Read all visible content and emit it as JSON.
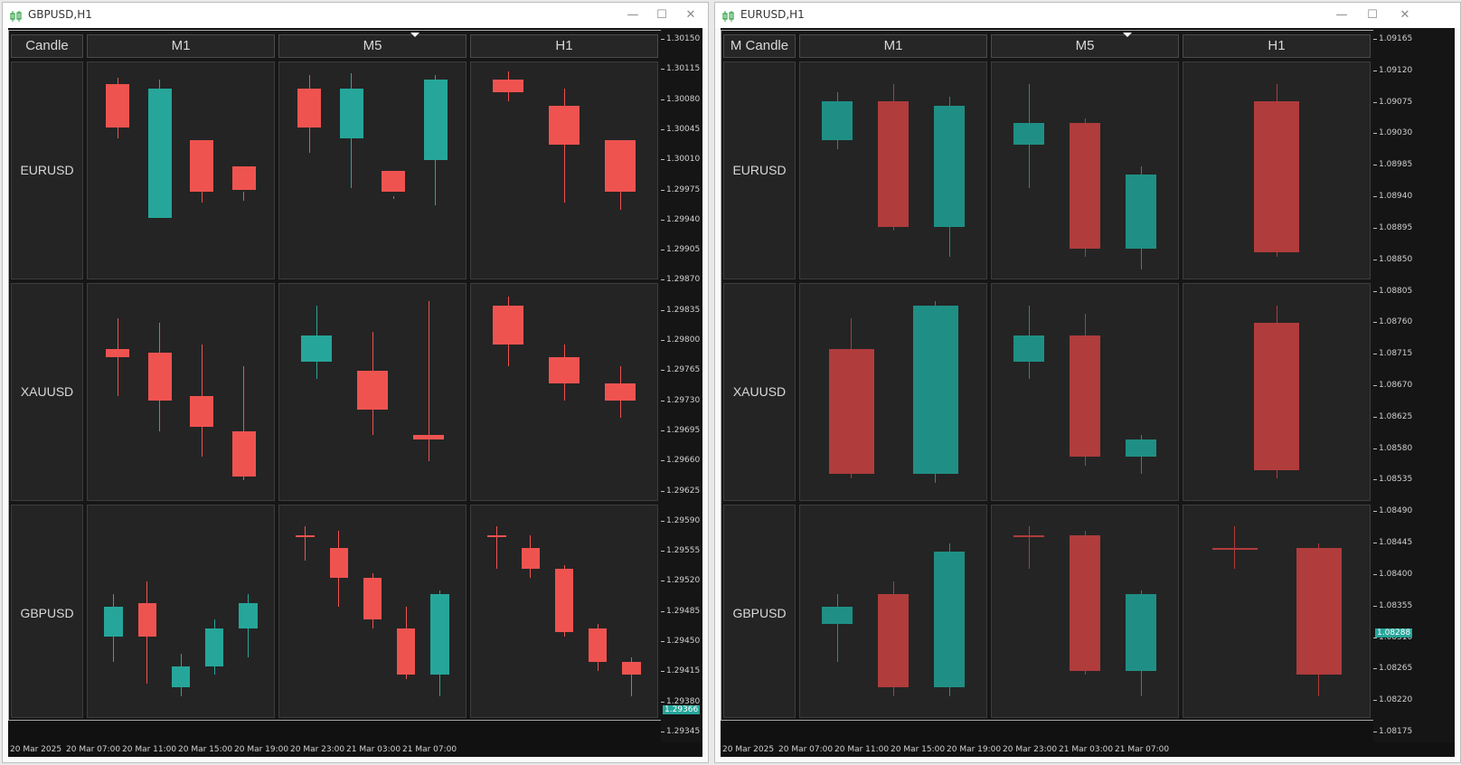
{
  "colors": {
    "bull": "#26a69a",
    "bear": "#ef5350",
    "bull_dark": "#1f8f85",
    "bear_dark": "#b03c3c",
    "tag": "#26a69a"
  },
  "windows": [
    {
      "id": "gbp",
      "title": "GBPUSD,H1",
      "icon": "candlestick-chart-icon",
      "corner_label": "Candle",
      "columns": [
        "M1",
        "M5",
        "H1"
      ],
      "rows": [
        {
          "label": "EURUSD",
          "cells": [
            [
              [
                0.1,
                0.3,
                0.07,
                0.35
              ],
              [
                0.72,
                0.12,
                0.08,
                0.58
              ],
              [
                0.36,
                0.6,
                0.58,
                0.65
              ],
              [
                0.48,
                0.59,
                0.6,
                0.64
              ]
            ],
            [
              [
                0.12,
                0.3,
                0.06,
                0.42
              ],
              [
                0.35,
                0.12,
                0.05,
                0.58
              ],
              [
                0.5,
                0.6,
                0.62,
                0.63
              ],
              [
                0.45,
                0.08,
                0.06,
                0.66
              ]
            ],
            [
              [
                0.08,
                0.14,
                0.04,
                0.18
              ],
              [
                0.2,
                0.38,
                0.12,
                0.65
              ],
              [
                0.36,
                0.6,
                0.58,
                0.68
              ]
            ]
          ]
        },
        {
          "label": "XAUUSD",
          "cells": [
            [
              [
                0.3,
                0.34,
                0.16,
                0.52
              ],
              [
                0.32,
                0.54,
                0.18,
                0.68
              ],
              [
                0.52,
                0.66,
                0.28,
                0.8
              ],
              [
                0.68,
                0.89,
                0.38,
                0.91
              ]
            ],
            [
              [
                0.36,
                0.24,
                0.1,
                0.44
              ],
              [
                0.4,
                0.58,
                0.22,
                0.7
              ],
              [
                0.7,
                0.72,
                0.08,
                0.82
              ]
            ],
            [
              [
                0.1,
                0.28,
                0.06,
                0.38
              ],
              [
                0.34,
                0.46,
                0.28,
                0.54
              ],
              [
                0.46,
                0.54,
                0.38,
                0.62
              ]
            ]
          ]
        },
        {
          "label": "GBPUSD",
          "cells": [
            [
              [
                0.62,
                0.48,
                0.42,
                0.74
              ],
              [
                0.46,
                0.62,
                0.36,
                0.84
              ],
              [
                0.86,
                0.76,
                0.7,
                0.9
              ],
              [
                0.76,
                0.58,
                0.54,
                0.8
              ],
              [
                0.58,
                0.46,
                0.42,
                0.72
              ]
            ],
            [
              [
                0.14,
                0.14,
                0.1,
                0.26
              ],
              [
                0.2,
                0.34,
                0.12,
                0.48
              ],
              [
                0.34,
                0.54,
                0.32,
                0.58
              ],
              [
                0.58,
                0.8,
                0.48,
                0.82
              ],
              [
                0.8,
                0.42,
                0.4,
                0.9
              ]
            ],
            [
              [
                0.14,
                0.15,
                0.1,
                0.3
              ],
              [
                0.2,
                0.3,
                0.14,
                0.34
              ],
              [
                0.3,
                0.6,
                0.28,
                0.62
              ],
              [
                0.58,
                0.74,
                0.56,
                0.78
              ],
              [
                0.74,
                0.8,
                0.72,
                0.9
              ]
            ]
          ]
        }
      ],
      "price_labels": [
        "1.30150",
        "1.30115",
        "1.30080",
        "1.30045",
        "1.30010",
        "1.29975",
        "1.29940",
        "1.29905",
        "1.29870",
        "1.29835",
        "1.29800",
        "1.29765",
        "1.29730",
        "1.29695",
        "1.29660",
        "1.29625",
        "1.29590",
        "1.29555",
        "1.29520",
        "1.29485",
        "1.29450",
        "1.29415",
        "1.29380",
        "1.29345"
      ],
      "current_price": "1.29366",
      "time_labels": [
        "20 Mar 2025",
        "20 Mar 07:00",
        "20 Mar 11:00",
        "20 Mar 15:00",
        "20 Mar 19:00",
        "20 Mar 23:00",
        "21 Mar 03:00",
        "21 Mar 07:00"
      ]
    },
    {
      "id": "eur",
      "title": "EURUSD,H1",
      "icon": "candlestick-chart-icon",
      "corner_label": "M Candle",
      "columns": [
        "M1",
        "M5",
        "H1"
      ],
      "rows": [
        {
          "label": "EURUSD",
          "cells": [
            [
              [
                0.36,
                0.18,
                0.14,
                0.4
              ],
              [
                0.18,
                0.76,
                0.1,
                0.78
              ],
              [
                0.76,
                0.2,
                0.16,
                0.9
              ]
            ],
            [
              [
                0.38,
                0.28,
                0.1,
                0.58
              ],
              [
                0.28,
                0.86,
                0.26,
                0.9
              ],
              [
                0.86,
                0.52,
                0.48,
                0.96
              ]
            ],
            [
              [
                0.18,
                0.88,
                0.1,
                0.9
              ]
            ]
          ]
        },
        {
          "label": "XAUUSD",
          "cells": [
            [
              [
                0.3,
                0.88,
                0.16,
                0.9
              ],
              [
                0.88,
                0.1,
                0.08,
                0.92
              ]
            ],
            [
              [
                0.36,
                0.24,
                0.1,
                0.44
              ],
              [
                0.24,
                0.8,
                0.14,
                0.84
              ],
              [
                0.8,
                0.72,
                0.7,
                0.88
              ]
            ],
            [
              [
                0.18,
                0.86,
                0.1,
                0.9
              ]
            ]
          ]
        },
        {
          "label": "GBPUSD",
          "cells": [
            [
              [
                0.56,
                0.48,
                0.42,
                0.74
              ],
              [
                0.42,
                0.86,
                0.36,
                0.9
              ],
              [
                0.86,
                0.22,
                0.18,
                0.9
              ]
            ],
            [
              [
                0.14,
                0.14,
                0.1,
                0.3
              ],
              [
                0.14,
                0.78,
                0.12,
                0.8
              ],
              [
                0.78,
                0.42,
                0.4,
                0.9
              ]
            ],
            [
              [
                0.2,
                0.2,
                0.1,
                0.3
              ],
              [
                0.2,
                0.8,
                0.18,
                0.9
              ]
            ]
          ]
        }
      ],
      "price_labels": [
        "1.09165",
        "1.09120",
        "1.09075",
        "1.09030",
        "1.08985",
        "1.08940",
        "1.08895",
        "1.08850",
        "1.08805",
        "1.08760",
        "1.08715",
        "1.08670",
        "1.08625",
        "1.08580",
        "1.08535",
        "1.08490",
        "1.08445",
        "1.08400",
        "1.08355",
        "1.08310",
        "1.08265",
        "1.08220",
        "1.08175"
      ],
      "current_price": "1.08288",
      "time_labels": [
        "20 Mar 2025",
        "20 Mar 07:00",
        "20 Mar 11:00",
        "20 Mar 15:00",
        "20 Mar 19:00",
        "20 Mar 23:00",
        "21 Mar 03:00",
        "21 Mar 07:00"
      ]
    }
  ],
  "window_controls": {
    "minimize": "minimize-icon",
    "maximize": "maximize-icon",
    "close": "close-icon"
  }
}
